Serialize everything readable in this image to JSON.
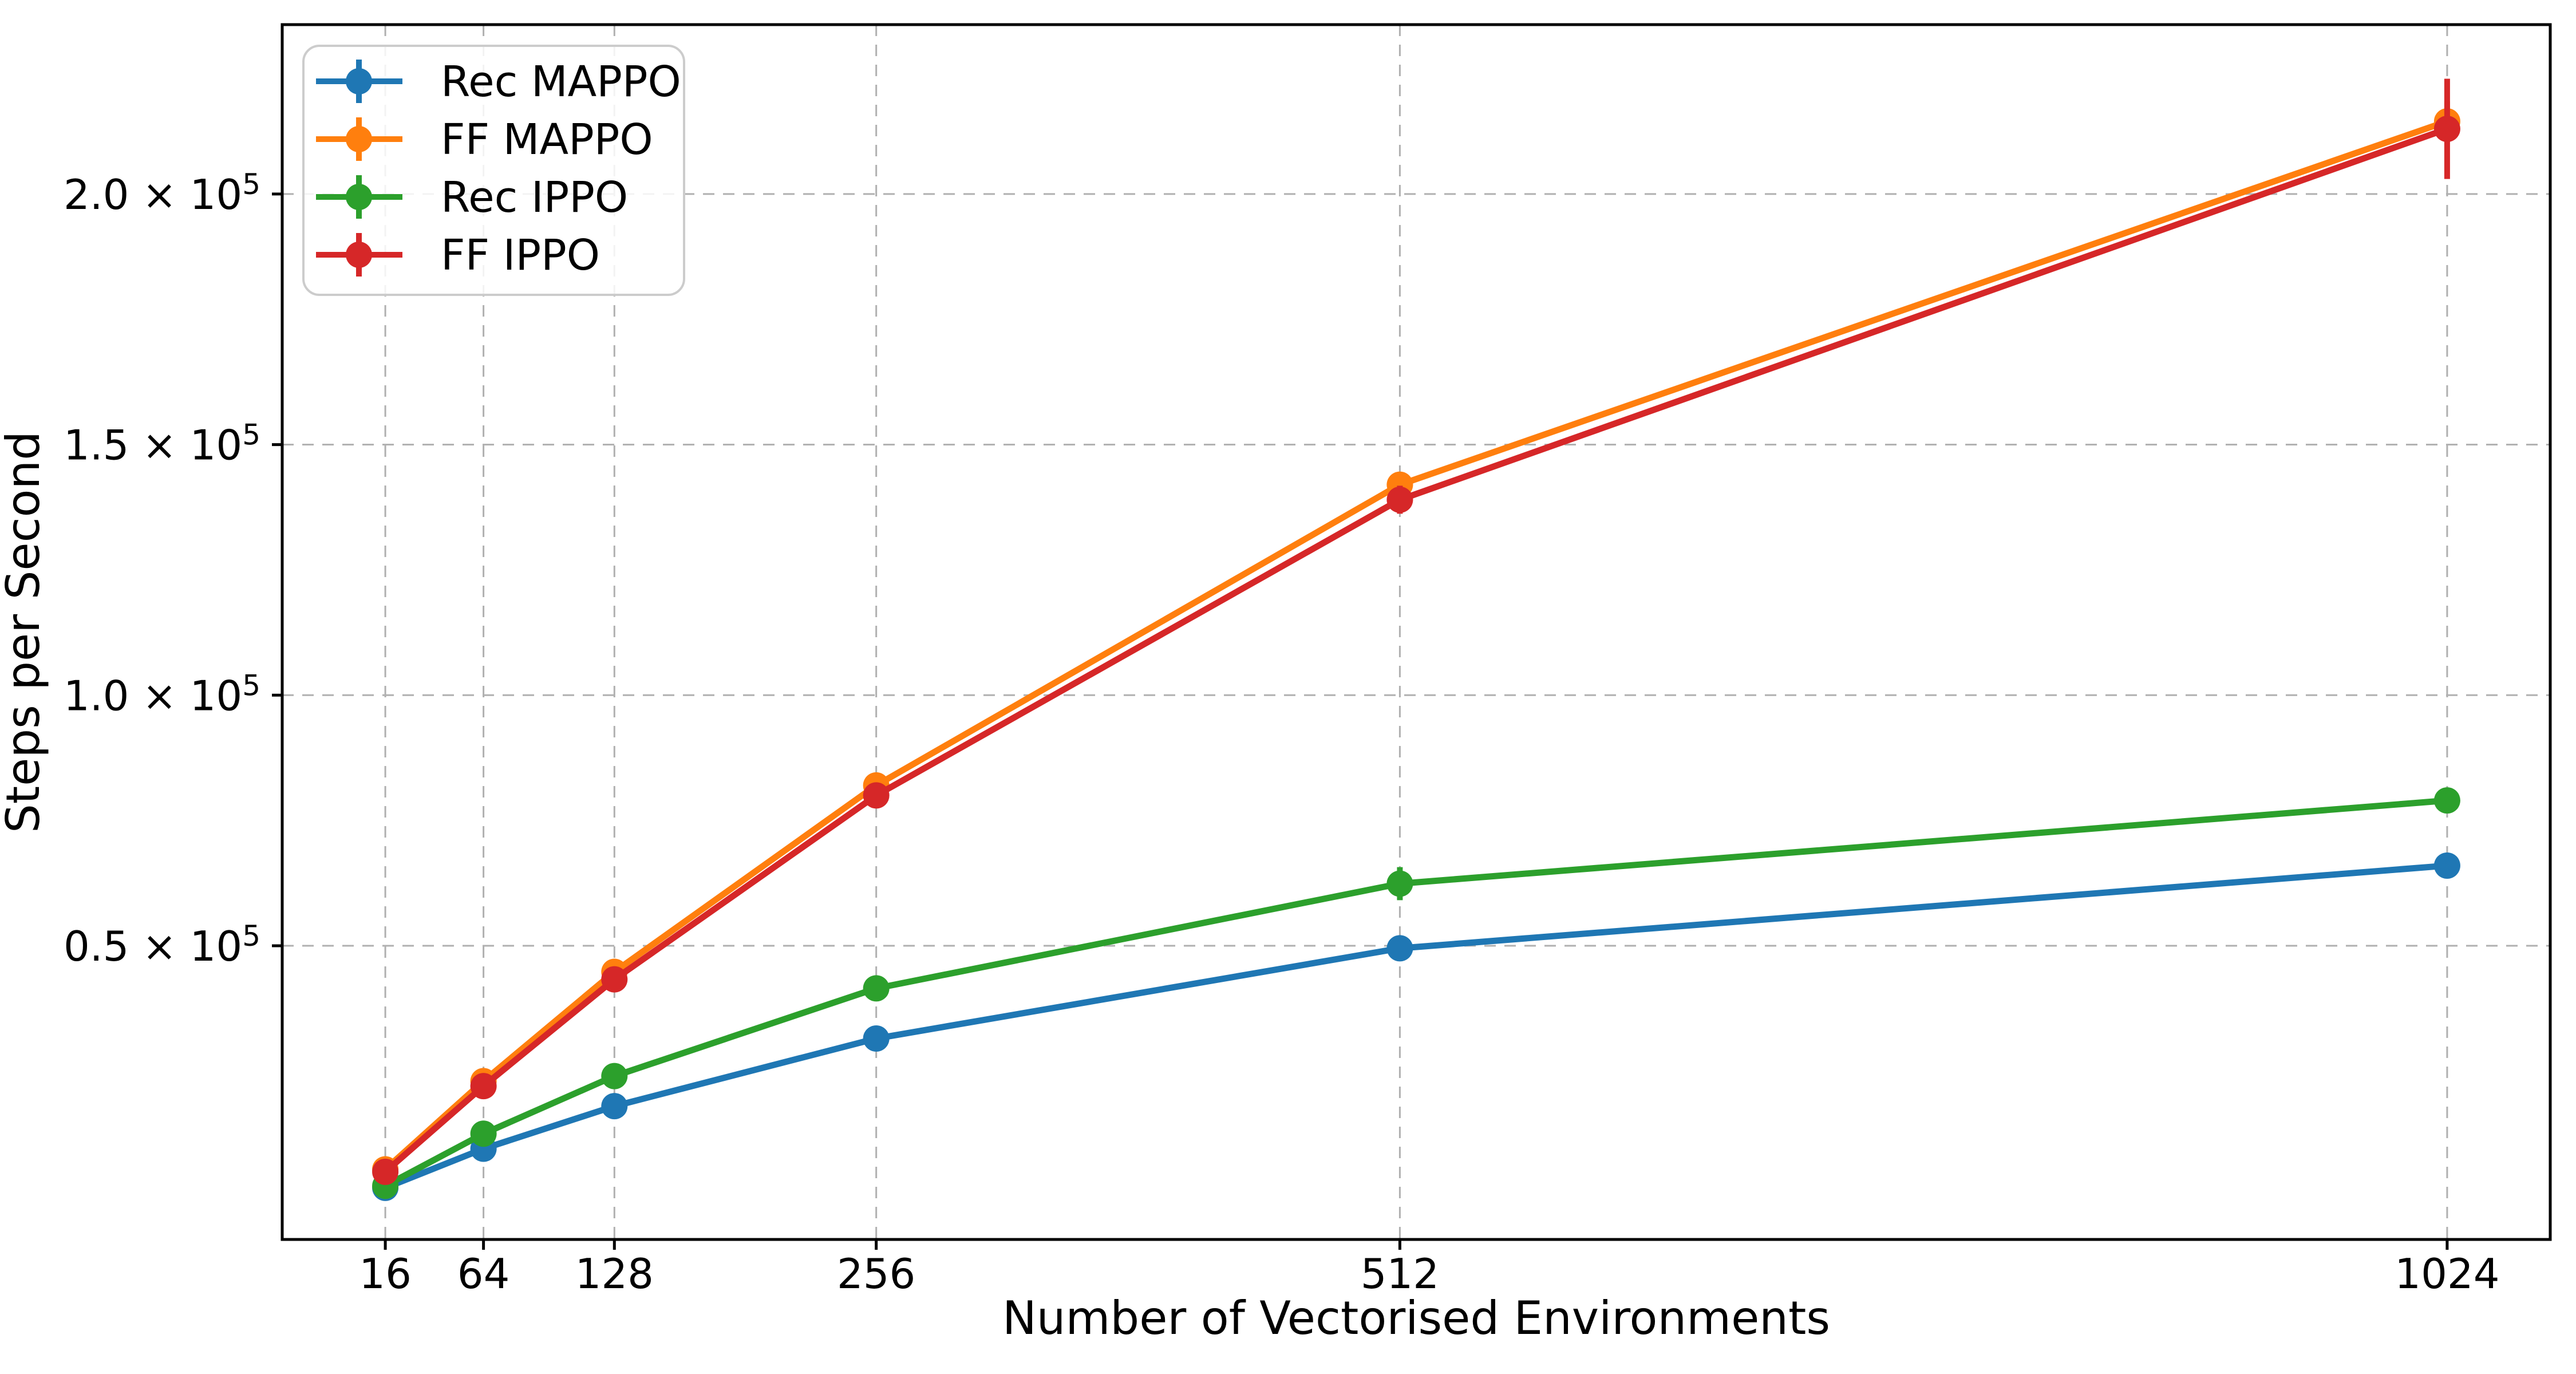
{
  "chart_data": {
    "type": "line",
    "title": "",
    "xlabel": "Number of Vectorised Environments",
    "ylabel": "Steps per Second",
    "x": [
      16,
      64,
      128,
      256,
      512,
      1024
    ],
    "xtick_labels": [
      "16",
      "64",
      "128",
      "256",
      "512",
      "1024"
    ],
    "yticks": [
      {
        "value": 50000,
        "mantissa": "0.5"
      },
      {
        "value": 100000,
        "mantissa": "1.0"
      },
      {
        "value": 150000,
        "mantissa": "1.5"
      },
      {
        "value": 200000,
        "mantissa": "2.0"
      }
    ],
    "ytick_times_symbol": "×",
    "ytick_base": "10",
    "ytick_exponent": "5",
    "xlim": [
      -34.4,
      1074.4
    ],
    "ylim": [
      -8600,
      233800
    ],
    "grid": {
      "on": true,
      "color": "#b0b0b0",
      "dash": "20 15"
    },
    "axis_color": "#000000",
    "legend": {
      "position": "upper-left",
      "border_color": "#cccccc",
      "background": "#ffffff"
    },
    "series": [
      {
        "name": "Rec MAPPO",
        "color": "#1f77b4",
        "values": [
          1700,
          9500,
          18000,
          31500,
          49500,
          66000
        ],
        "yerr": [
          300,
          400,
          500,
          700,
          1200,
          1500
        ]
      },
      {
        "name": "FF MAPPO",
        "color": "#ff7f0e",
        "values": [
          5400,
          23000,
          44800,
          82000,
          142000,
          214500
        ],
        "yerr": [
          300,
          500,
          800,
          1200,
          2500,
          4000
        ]
      },
      {
        "name": "Rec IPPO",
        "color": "#2ca02c",
        "values": [
          2100,
          12500,
          24000,
          41500,
          62400,
          79000
        ],
        "yerr": [
          300,
          400,
          600,
          900,
          3300,
          1500
        ]
      },
      {
        "name": "FF IPPO",
        "color": "#d62728",
        "values": [
          4900,
          22000,
          43300,
          80000,
          139000,
          213000
        ],
        "yerr": [
          400,
          600,
          900,
          1500,
          2800,
          10000
        ]
      }
    ]
  }
}
